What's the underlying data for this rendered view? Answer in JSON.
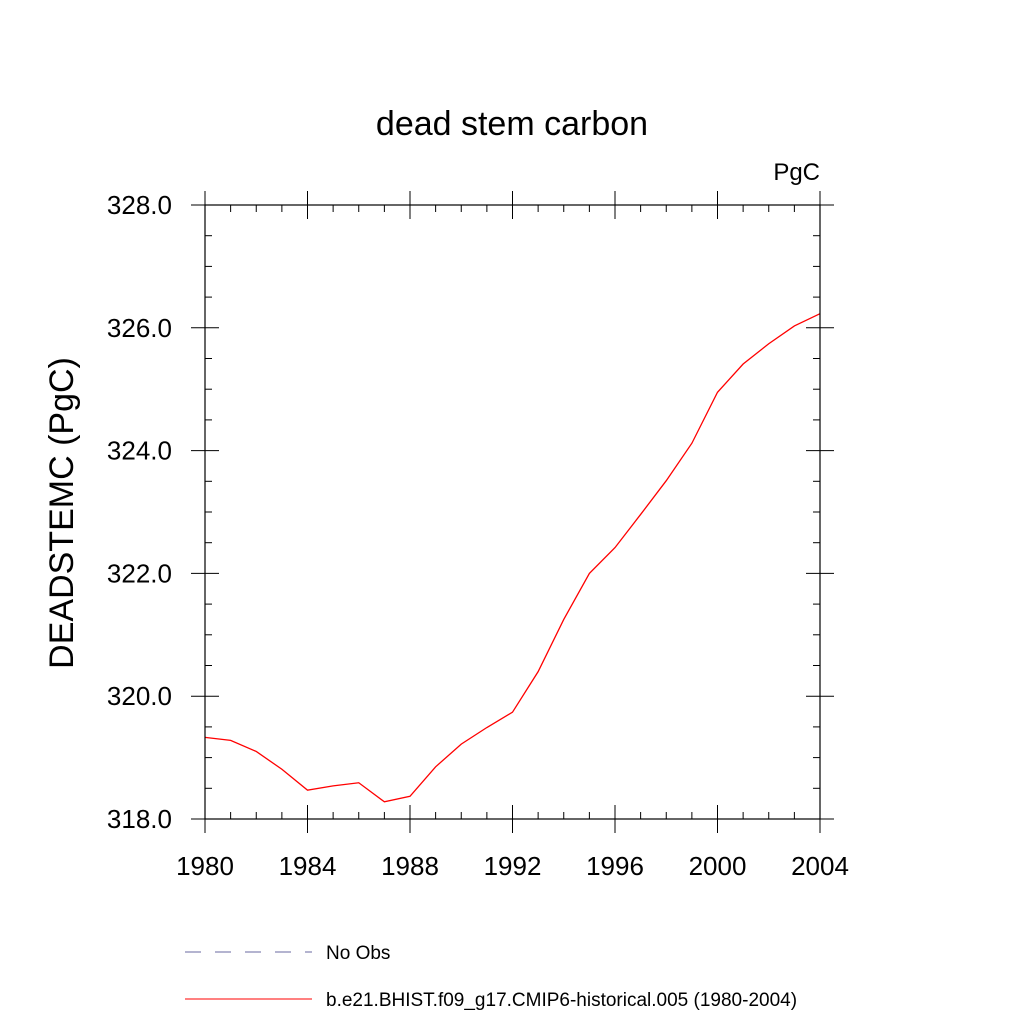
{
  "chart_data": {
    "type": "line",
    "title": "dead stem carbon",
    "units_label": "PgC",
    "ylabel": "DEADSTEMC  (PgC)",
    "xlabel": "",
    "xlim": [
      1980,
      2004
    ],
    "ylim": [
      318.0,
      328.0
    ],
    "x_ticks": [
      1980,
      1984,
      1988,
      1992,
      1996,
      2000,
      2004
    ],
    "x_tick_labels": [
      "1980",
      "1984",
      "1988",
      "1992",
      "1996",
      "2000",
      "2004"
    ],
    "y_ticks": [
      318.0,
      320.0,
      322.0,
      324.0,
      326.0,
      328.0
    ],
    "y_tick_labels": [
      "318.0",
      "320.0",
      "322.0",
      "324.0",
      "326.0",
      "328.0"
    ],
    "x_minor_step": 1,
    "y_minor_step": 0.5,
    "grid": false,
    "legend_position": "bottom",
    "legend": [
      {
        "label": "No Obs",
        "color": "#6a6aa0",
        "style": "dashed"
      },
      {
        "label": "b.e21.BHIST.f09_g17.CMIP6-historical.005 (1980-2004)",
        "color": "#ff0000",
        "style": "solid"
      }
    ],
    "series": [
      {
        "name": "b.e21.BHIST.f09_g17.CMIP6-historical.005 (1980-2004)",
        "color": "#ff0000",
        "x": [
          1980,
          1981,
          1982,
          1983,
          1984,
          1985,
          1986,
          1987,
          1988,
          1989,
          1990,
          1991,
          1992,
          1993,
          1994,
          1995,
          1996,
          1997,
          1998,
          1999,
          2000,
          2001,
          2002,
          2003,
          2004
        ],
        "values": [
          319.33,
          319.28,
          319.1,
          318.81,
          318.47,
          318.54,
          318.59,
          318.28,
          318.37,
          318.85,
          319.22,
          319.49,
          319.74,
          320.4,
          321.25,
          322.0,
          322.42,
          322.96,
          323.51,
          324.12,
          324.95,
          325.41,
          325.74,
          326.03,
          326.23
        ]
      }
    ]
  }
}
